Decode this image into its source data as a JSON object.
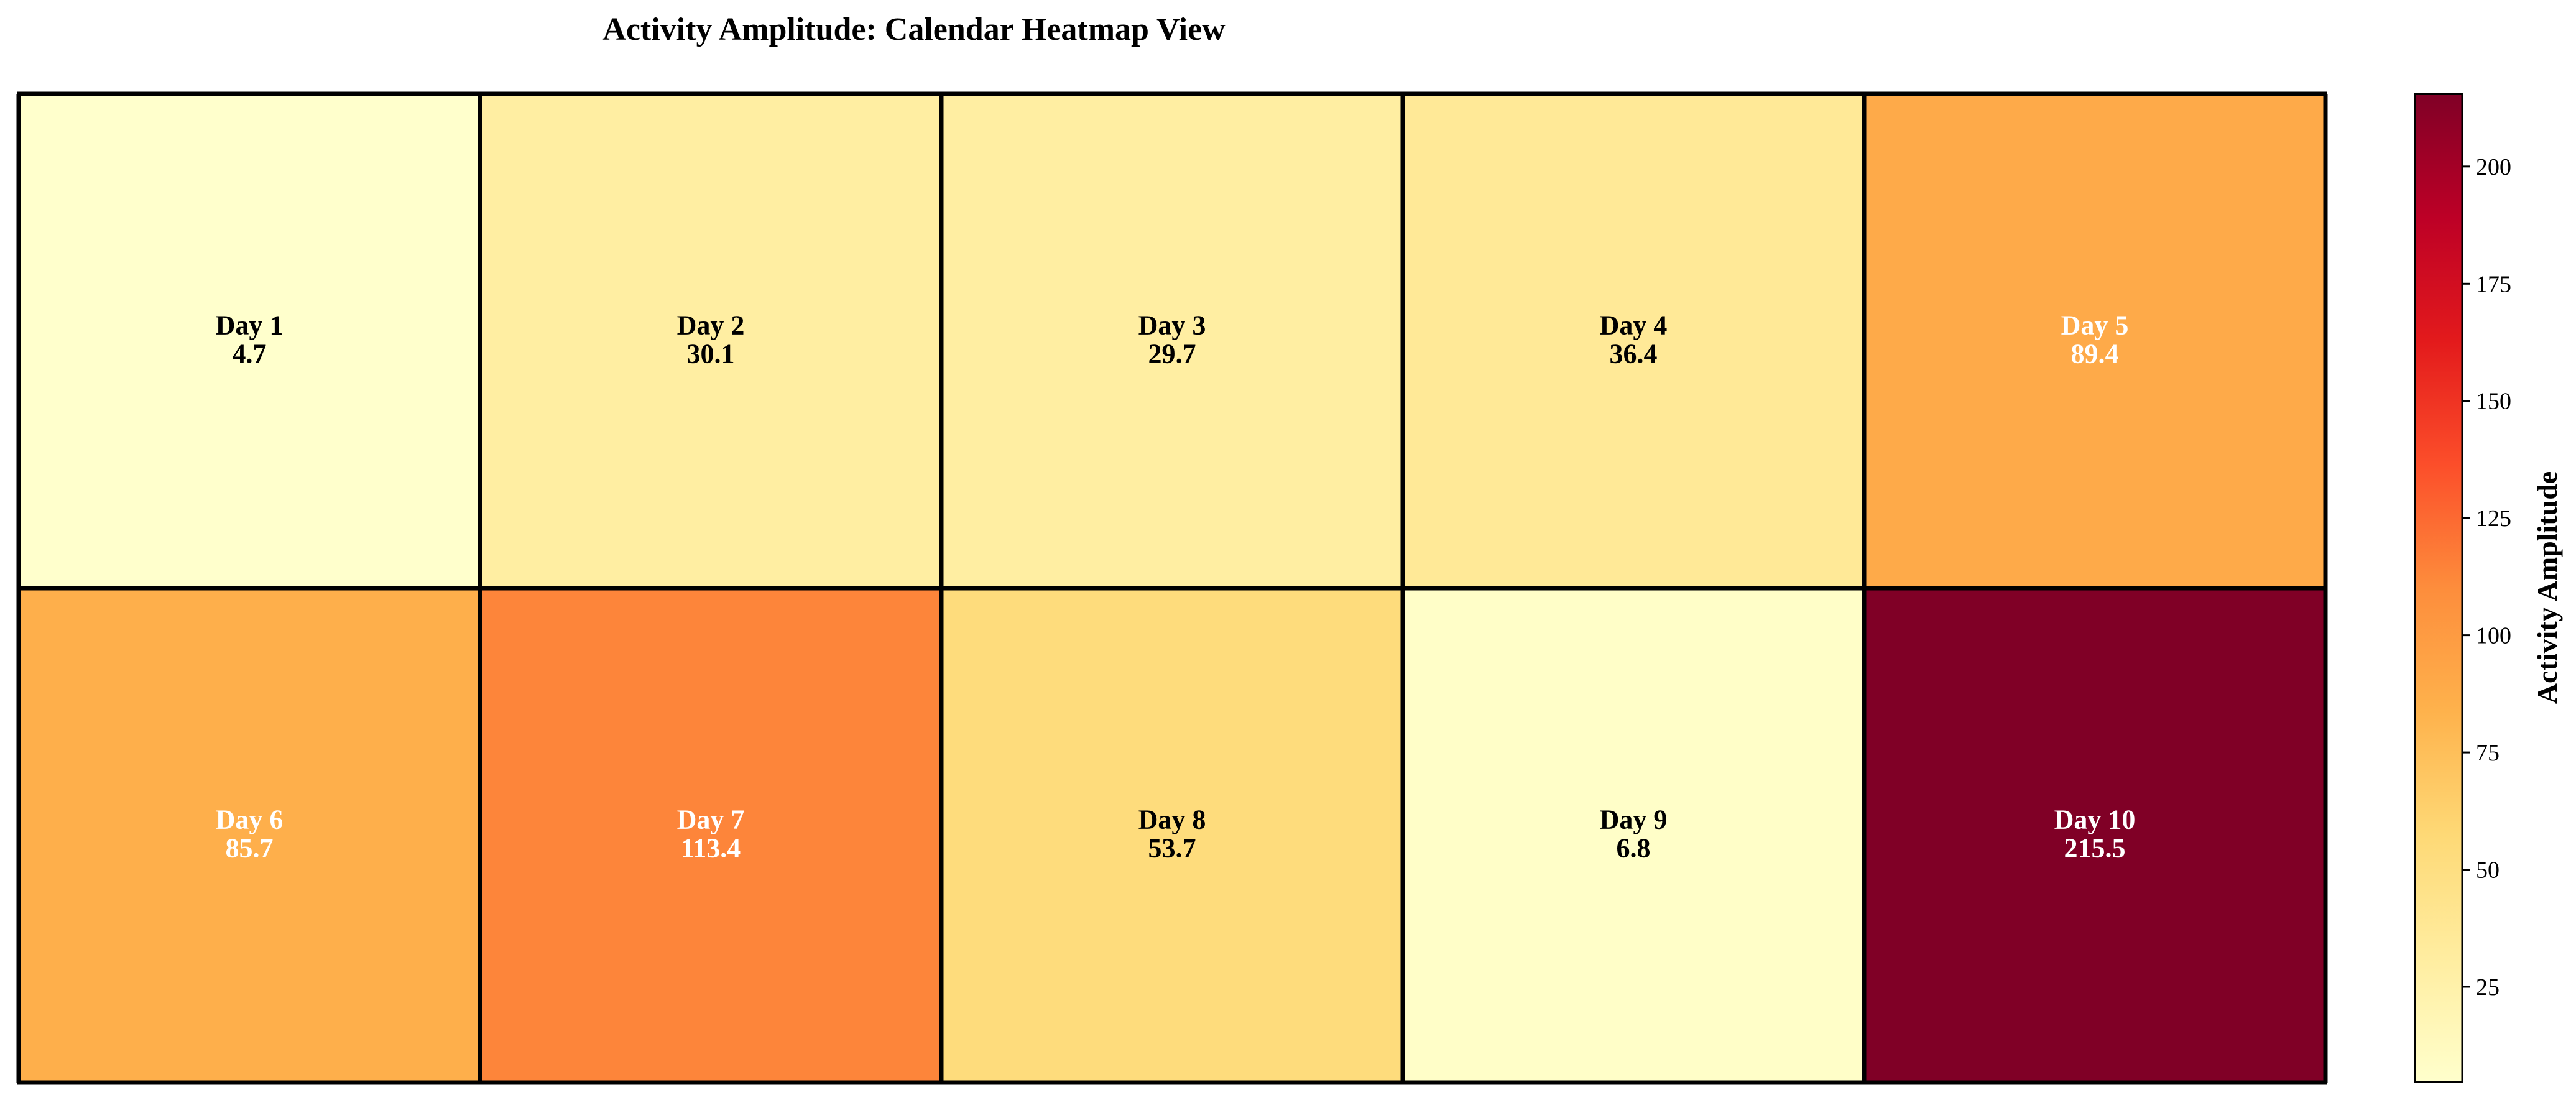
{
  "chart_data": {
    "type": "heatmap",
    "title": "Activity Amplitude: Calendar Heatmap View",
    "rows": 2,
    "cols": 5,
    "cells": [
      {
        "label": "Day 1",
        "value": 4.7
      },
      {
        "label": "Day 2",
        "value": 30.1
      },
      {
        "label": "Day 3",
        "value": 29.7
      },
      {
        "label": "Day 4",
        "value": 36.4
      },
      {
        "label": "Day 5",
        "value": 89.4
      },
      {
        "label": "Day 6",
        "value": 85.7
      },
      {
        "label": "Day 7",
        "value": 113.4
      },
      {
        "label": "Day 8",
        "value": 53.7
      },
      {
        "label": "Day 9",
        "value": 6.8
      },
      {
        "label": "Day 10",
        "value": 215.5
      }
    ],
    "colorbar": {
      "label": "Activity Amplitude",
      "range": [
        4.7,
        215.5
      ],
      "ticks": [
        25,
        50,
        75,
        100,
        125,
        150,
        175,
        200
      ],
      "colormap": "YlOrRd"
    },
    "grid": true
  }
}
